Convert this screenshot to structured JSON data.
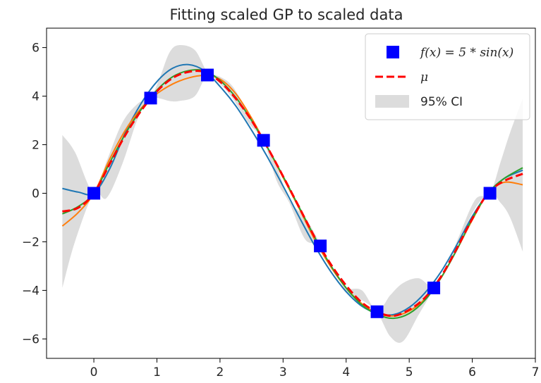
{
  "chart_data": {
    "type": "line",
    "title": "Fitting scaled GP to scaled data",
    "xlabel": "",
    "ylabel": "",
    "xlim": [
      -0.75,
      7.0
    ],
    "ylim": [
      -6.8,
      6.8
    ],
    "x_ticks": [
      0,
      1,
      2,
      3,
      4,
      5,
      6,
      7
    ],
    "y_ticks": [
      -6,
      -4,
      -2,
      0,
      2,
      4,
      6
    ],
    "x_tick_labels": [
      "0",
      "1",
      "2",
      "3",
      "4",
      "5",
      "6",
      "7"
    ],
    "y_tick_labels": [
      "−6",
      "−4",
      "−2",
      "0",
      "2",
      "4",
      "6"
    ],
    "grid": false,
    "legend_position": "top-right",
    "legend": [
      {
        "label": "f(x) = 5 * sin(x)",
        "kind": "marker",
        "color": "#0000ff"
      },
      {
        "label": "μ",
        "kind": "dashed-line",
        "color": "#ff0000"
      },
      {
        "label": "95% CI",
        "kind": "band",
        "color": "#dcdcdc"
      }
    ],
    "observations": {
      "name": "f(x) = 5 * sin(x)",
      "color": "#0000ff",
      "x": [
        0.0,
        0.9,
        1.8,
        2.69,
        3.59,
        4.49,
        5.39,
        6.28
      ],
      "y": [
        0.0,
        3.92,
        4.87,
        2.18,
        -2.17,
        -4.88,
        -3.9,
        0.0
      ]
    },
    "confidence_band": {
      "name": "95% CI",
      "color": "#dcdcdc",
      "x": [
        -0.5,
        -0.3,
        0.0,
        0.2,
        0.45,
        0.7,
        0.9,
        1.05,
        1.2,
        1.35,
        1.6,
        1.8,
        2.0,
        2.2,
        2.45,
        2.69,
        2.9,
        3.1,
        3.35,
        3.59,
        3.8,
        4.0,
        4.25,
        4.49,
        4.7,
        4.9,
        5.15,
        5.39,
        5.6,
        5.8,
        6.05,
        6.28,
        6.45,
        6.6,
        6.8
      ],
      "upper": [
        2.4,
        1.7,
        0.0,
        1.3,
        2.9,
        3.7,
        3.95,
        4.8,
        5.8,
        6.1,
        5.9,
        5.0,
        4.8,
        4.4,
        3.3,
        2.25,
        1.1,
        -0.3,
        -1.0,
        -2.1,
        -3.3,
        -3.9,
        -4.0,
        -4.85,
        -4.2,
        -3.7,
        -3.5,
        -3.85,
        -3.0,
        -1.7,
        -0.25,
        0.0,
        1.3,
        2.5,
        3.9
      ],
      "lower": [
        -3.9,
        -2.0,
        0.0,
        -0.2,
        1.2,
        3.1,
        3.9,
        3.9,
        3.8,
        3.8,
        4.0,
        4.85,
        4.5,
        3.9,
        2.9,
        2.15,
        0.5,
        -0.4,
        -1.9,
        -2.15,
        -3.3,
        -4.1,
        -4.4,
        -4.9,
        -5.9,
        -6.1,
        -5.0,
        -3.95,
        -3.1,
        -1.9,
        -0.6,
        0.0,
        -0.4,
        -1.0,
        -2.4
      ]
    },
    "series": [
      {
        "name": "μ",
        "color": "#ff0000",
        "style": "dashed",
        "x": [
          -0.5,
          -0.25,
          0.0,
          0.25,
          0.5,
          0.75,
          1.0,
          1.25,
          1.5,
          1.75,
          2.0,
          2.25,
          2.5,
          2.75,
          3.0,
          3.25,
          3.5,
          3.75,
          4.0,
          4.25,
          4.5,
          4.75,
          5.0,
          5.25,
          5.5,
          5.75,
          6.0,
          6.25,
          6.5,
          6.8
        ],
        "y": [
          -0.75,
          -0.6,
          0.0,
          1.2,
          2.4,
          3.4,
          4.2,
          4.75,
          5.0,
          5.0,
          4.6,
          3.9,
          3.0,
          1.9,
          0.7,
          -0.55,
          -1.8,
          -2.9,
          -3.8,
          -4.5,
          -4.9,
          -5.05,
          -4.8,
          -4.3,
          -3.45,
          -2.3,
          -1.05,
          0.0,
          0.5,
          0.8
        ]
      },
      {
        "color": "#1f77b4",
        "style": "solid",
        "x": [
          -0.5,
          -0.25,
          0.0,
          0.25,
          0.5,
          0.75,
          1.0,
          1.25,
          1.5,
          1.75,
          2.0,
          2.25,
          2.5,
          2.75,
          3.0,
          3.25,
          3.5,
          3.75,
          4.0,
          4.25,
          4.5,
          4.75,
          5.0,
          5.25,
          5.5,
          5.75,
          6.0,
          6.25,
          6.5,
          6.8
        ],
        "y": [
          0.2,
          0.05,
          0.0,
          1.0,
          2.5,
          3.7,
          4.6,
          5.15,
          5.3,
          5.05,
          4.4,
          3.6,
          2.6,
          1.5,
          0.3,
          -0.95,
          -2.15,
          -3.2,
          -4.05,
          -4.65,
          -4.95,
          -5.0,
          -4.7,
          -4.1,
          -3.25,
          -2.15,
          -0.95,
          0.0,
          0.6,
          0.95
        ]
      },
      {
        "color": "#ff7f0e",
        "style": "solid",
        "x": [
          -0.5,
          -0.25,
          0.0,
          0.25,
          0.5,
          0.75,
          1.0,
          1.25,
          1.5,
          1.75,
          2.0,
          2.25,
          2.5,
          2.75,
          3.0,
          3.25,
          3.5,
          3.75,
          4.0,
          4.25,
          4.5,
          4.75,
          5.0,
          5.25,
          5.5,
          5.75,
          6.0,
          6.25,
          6.5,
          6.8
        ],
        "y": [
          -1.35,
          -0.8,
          0.0,
          1.4,
          2.6,
          3.5,
          4.1,
          4.5,
          4.75,
          4.85,
          4.7,
          4.1,
          3.1,
          1.9,
          0.65,
          -0.6,
          -1.9,
          -3.0,
          -3.9,
          -4.55,
          -4.95,
          -5.05,
          -4.85,
          -4.35,
          -3.5,
          -2.35,
          -1.1,
          0.0,
          0.45,
          0.35
        ]
      },
      {
        "color": "#2ca02c",
        "style": "solid",
        "x": [
          -0.5,
          -0.25,
          0.0,
          0.25,
          0.5,
          0.75,
          1.0,
          1.25,
          1.5,
          1.75,
          2.0,
          2.25,
          2.5,
          2.75,
          3.0,
          3.25,
          3.5,
          3.75,
          4.0,
          4.25,
          4.5,
          4.75,
          5.0,
          5.25,
          5.5,
          5.75,
          6.0,
          6.25,
          6.5,
          6.8
        ],
        "y": [
          -0.85,
          -0.55,
          0.0,
          1.25,
          2.45,
          3.45,
          4.25,
          4.8,
          5.05,
          5.05,
          4.65,
          3.95,
          3.0,
          1.9,
          0.7,
          -0.55,
          -1.8,
          -2.95,
          -3.9,
          -4.6,
          -5.0,
          -5.15,
          -4.95,
          -4.4,
          -3.5,
          -2.35,
          -1.05,
          0.0,
          0.6,
          1.05
        ]
      }
    ]
  }
}
